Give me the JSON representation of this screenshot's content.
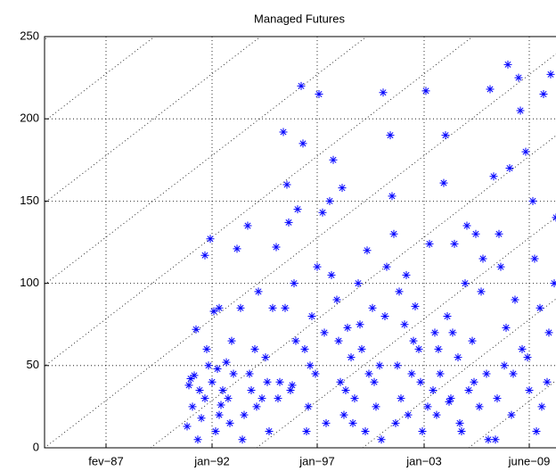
{
  "chart_data": {
    "type": "scatter",
    "title": "Managed Futures",
    "series": [
      {
        "name": null,
        "color": "#0000ff",
        "x": [
          80,
          82,
          84,
          83,
          86,
          88,
          85,
          90,
          92,
          94,
          96,
          98,
          100,
          90,
          93,
          95,
          98,
          91,
          87,
          97,
          99,
          81,
          102,
          104,
          106,
          108,
          110,
          112,
          114,
          116,
          118,
          120,
          122,
          124,
          126,
          128,
          105,
          115,
          125,
          111,
          119,
          103,
          130,
          132,
          134,
          136,
          138,
          140,
          142,
          144,
          146,
          148,
          150,
          152,
          154,
          156,
          158,
          135,
          141,
          145,
          149,
          131,
          137,
          147,
          153,
          157,
          139,
          160,
          162,
          164,
          166,
          168,
          170,
          172,
          174,
          176,
          178,
          180,
          182,
          184,
          186,
          188,
          161,
          165,
          169,
          173,
          177,
          181,
          185,
          189,
          167,
          190,
          192,
          194,
          196,
          198,
          200,
          202,
          204,
          206,
          208,
          210,
          212,
          214,
          216,
          218,
          195,
          199,
          203,
          207,
          211,
          215,
          219,
          191,
          197,
          220,
          222,
          224,
          226,
          228,
          230,
          232,
          234,
          236,
          238,
          240,
          242,
          244,
          246,
          248,
          225,
          229,
          233,
          237,
          241,
          245,
          249,
          221,
          227,
          250,
          252,
          254,
          256,
          258,
          260,
          262,
          264,
          266,
          268,
          270,
          272,
          274,
          276,
          278,
          280,
          282,
          284,
          286,
          255,
          259,
          263,
          267,
          271,
          275,
          279,
          283,
          287,
          253,
          261
        ],
        "values": [
          13,
          42,
          44,
          25,
          5,
          18,
          72,
          30,
          50,
          40,
          10,
          20,
          35,
          117,
          127,
          83,
          85,
          60,
          35,
          48,
          26,
          38,
          52,
          15,
          45,
          121,
          85,
          20,
          135,
          35,
          60,
          95,
          30,
          55,
          10,
          85,
          65,
          45,
          40,
          5,
          25,
          30,
          122,
          40,
          192,
          160,
          35,
          100,
          145,
          220,
          60,
          25,
          80,
          45,
          215,
          143,
          15,
          85,
          65,
          185,
          50,
          30,
          137,
          10,
          110,
          70,
          38,
          150,
          175,
          90,
          40,
          20,
          73,
          55,
          30,
          100,
          60,
          10,
          45,
          85,
          25,
          50,
          105,
          65,
          35,
          15,
          75,
          120,
          40,
          5,
          158,
          216,
          110,
          190,
          130,
          50,
          30,
          75,
          20,
          45,
          86,
          60,
          10,
          217,
          124,
          35,
          153,
          95,
          105,
          65,
          40,
          25,
          70,
          80,
          15,
          20,
          45,
          161,
          80,
          30,
          124,
          55,
          10,
          100,
          35,
          65,
          130,
          25,
          115,
          45,
          190,
          70,
          15,
          135,
          40,
          95,
          5,
          60,
          28,
          218,
          165,
          30,
          110,
          50,
          233,
          20,
          90,
          225,
          60,
          180,
          35,
          150,
          10,
          85,
          215,
          40,
          227,
          100,
          130,
          73,
          45,
          205,
          55,
          115,
          25,
          70,
          140,
          5,
          170
        ]
      }
    ],
    "xlim": [
      0,
      300
    ],
    "xticks": [
      {
        "value": 34.5,
        "label": "fev−87"
      },
      {
        "value": 94,
        "label": "jan−92"
      },
      {
        "value": 153,
        "label": "jan−97"
      },
      {
        "value": 213,
        "label": "jan−03"
      },
      {
        "value": 272,
        "label": "june−09"
      }
    ],
    "ylim": [
      0,
      250
    ],
    "yticks": [
      0,
      50,
      100,
      150,
      200,
      250
    ],
    "grid": true
  }
}
